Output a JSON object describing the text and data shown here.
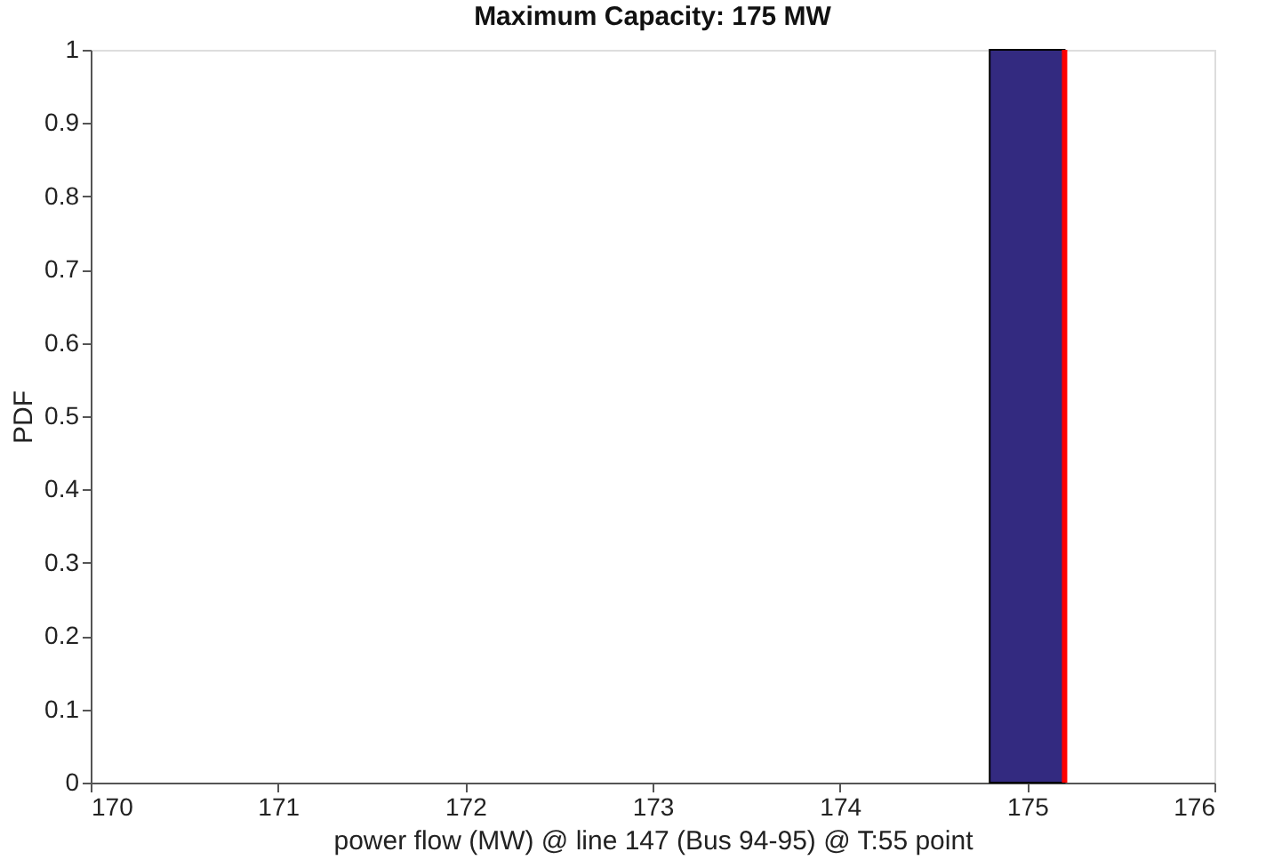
{
  "chart_data": {
    "type": "histogram",
    "title": "Maximum Capacity: 175 MW",
    "xlabel": "power flow (MW) @ line 147 (Bus 94-95) @ T:55 point",
    "ylabel": "PDF",
    "bins": [
      174.8,
      175.2
    ],
    "values": [
      1
    ],
    "color": "#332a80",
    "xlim": [
      170,
      176
    ],
    "xticks": [
      170,
      171,
      172,
      173,
      174,
      175,
      176
    ],
    "ylim": [
      0,
      1
    ],
    "yticks": [
      0,
      0.1,
      0.2,
      0.3,
      0.4,
      0.5,
      0.6,
      0.7,
      0.8,
      0.9,
      1
    ],
    "ref_lines": [
      {
        "axis": "x",
        "value": 175.2,
        "color": "#ff0000"
      }
    ],
    "grid": false
  }
}
